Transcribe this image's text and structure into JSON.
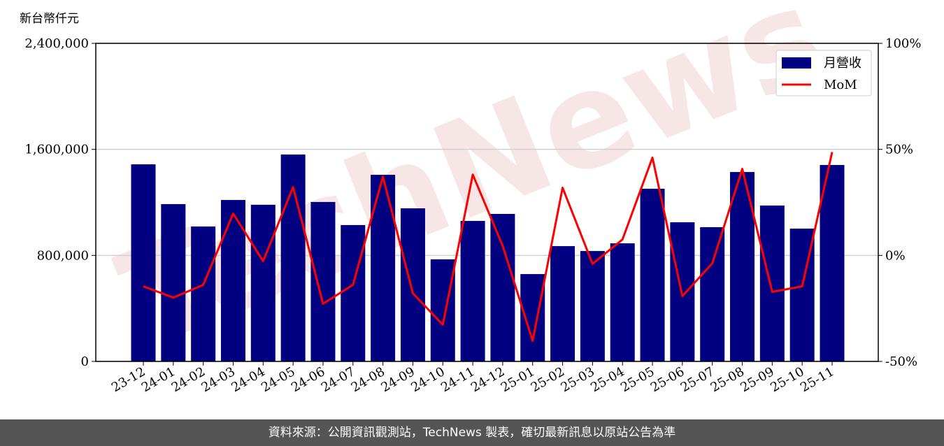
{
  "chart_data": {
    "type": "bar_line",
    "ylabel": "新台幣仟元",
    "watermark": "TechNews",
    "categories": [
      "23-12",
      "24-01",
      "24-02",
      "24-03",
      "24-04",
      "24-05",
      "24-06",
      "24-07",
      "24-08",
      "24-09",
      "24-10",
      "24-11",
      "24-12",
      "25-01",
      "25-02",
      "25-03",
      "25-04",
      "25-05",
      "25-06",
      "25-07",
      "25-08",
      "25-09",
      "25-10",
      "25-11"
    ],
    "series": [
      {
        "name": "月營收",
        "color": "#000080",
        "type": "bar",
        "values": [
          1487000,
          1187000,
          1018000,
          1218000,
          1182000,
          1561000,
          1203000,
          1029000,
          1408000,
          1155000,
          770000,
          1060000,
          1113000,
          659000,
          870000,
          833000,
          891000,
          1303000,
          1050000,
          1013000,
          1429000,
          1176000,
          1002000,
          1482000
        ]
      },
      {
        "name": "MoM",
        "color": "#ff0000",
        "type": "line",
        "axis": "y2",
        "values": [
          -14.6,
          -19.9,
          -13.9,
          19.7,
          -2.7,
          32.2,
          -22.8,
          -13.9,
          37.1,
          -17.9,
          -32.7,
          38.1,
          4.5,
          -40.3,
          31.9,
          -4.0,
          7.5,
          46.1,
          -19.2,
          -3.7,
          40.8,
          -17.2,
          -14.6,
          48.7
        ]
      }
    ],
    "ylim": [
      0,
      2400000
    ],
    "yticks": [
      {
        "value": 0,
        "label": "0"
      },
      {
        "value": 800000,
        "label": "800,000"
      },
      {
        "value": 1600000,
        "label": "1,600,000"
      },
      {
        "value": 2400000,
        "label": "2,400,000"
      }
    ],
    "y2lim": [
      -50,
      100
    ],
    "y2ticks": [
      {
        "value": -50,
        "label": "-50%"
      },
      {
        "value": 0,
        "label": "0%"
      },
      {
        "value": 50,
        "label": "50%"
      },
      {
        "value": 100,
        "label": "100%"
      }
    ],
    "grid": true,
    "legend": "upper right"
  },
  "footer": "資料來源：公開資訊觀測站，TechNews 製表，確切最新訊息以原站公告為準"
}
